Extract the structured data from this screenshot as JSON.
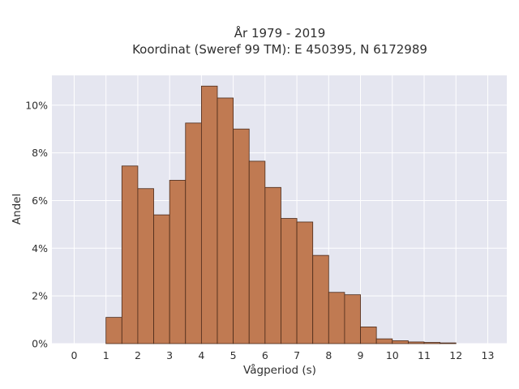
{
  "chart_data": {
    "type": "bar",
    "title_line1": "År 1979 - 2019",
    "title_line2": "Koordinat (Sweref 99 TM): E 450395, N 6172989",
    "xlabel": "Vågperiod (s)",
    "ylabel": "Andel",
    "bin_width": 0.5,
    "bin_starts": [
      0,
      0.5,
      1,
      1.5,
      2,
      2.5,
      3,
      3.5,
      4,
      4.5,
      5,
      5.5,
      6,
      6.5,
      7,
      7.5,
      8,
      8.5,
      9,
      9.5,
      10,
      10.5,
      11,
      11.5,
      12,
      12.5
    ],
    "values": [
      0.0,
      0.0,
      1.1,
      7.45,
      6.5,
      5.4,
      6.85,
      9.25,
      10.8,
      10.3,
      9.0,
      7.65,
      6.55,
      5.25,
      5.1,
      3.7,
      2.15,
      2.05,
      0.7,
      0.2,
      0.12,
      0.07,
      0.05,
      0.03,
      0.0,
      0.0
    ],
    "xticks": [
      "0",
      "1",
      "2",
      "3",
      "4",
      "5",
      "6",
      "7",
      "8",
      "9",
      "10",
      "11",
      "12",
      "13"
    ],
    "yticks": [
      "0%",
      "2%",
      "4%",
      "6%",
      "8%",
      "10%"
    ],
    "xlim": [
      -0.7,
      13.6
    ],
    "ylim": [
      0,
      11.25
    ],
    "grid": true,
    "bar_color": "#c07a52",
    "bar_edge_color": "#4a2a1a",
    "plot_bg": "#e5e6f0",
    "grid_color": "#ffffff"
  }
}
